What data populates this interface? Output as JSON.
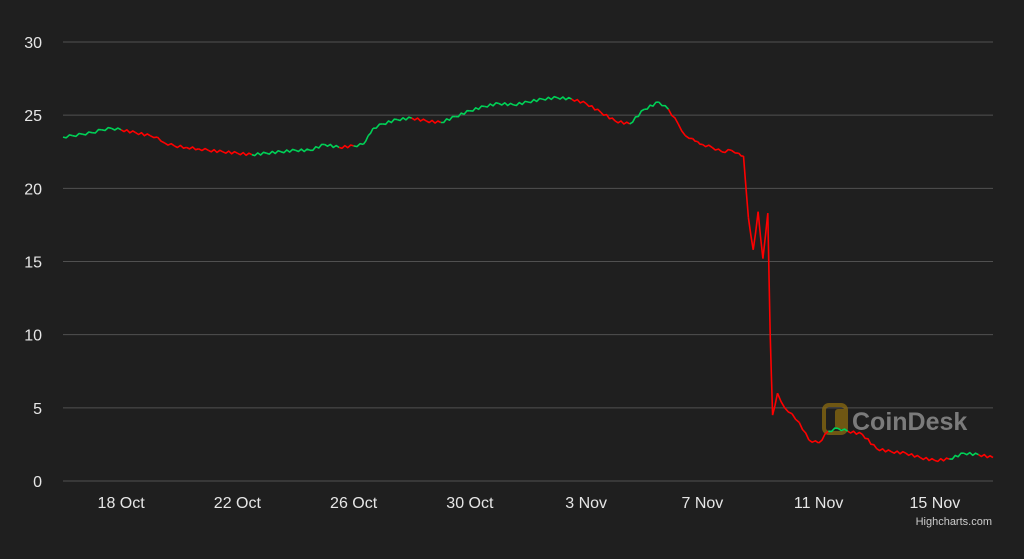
{
  "chart_data": {
    "type": "line",
    "title": "",
    "xlabel": "",
    "ylabel": "",
    "x_range": [
      "2022-10-16",
      "2022-11-17"
    ],
    "ylim": [
      0,
      30
    ],
    "y_ticks": [
      {
        "value": 0,
        "label": "0"
      },
      {
        "value": 5,
        "label": "5"
      },
      {
        "value": 10,
        "label": "10"
      },
      {
        "value": 15,
        "label": "15"
      },
      {
        "value": 20,
        "label": "20"
      },
      {
        "value": 25,
        "label": "25"
      },
      {
        "value": 30,
        "label": "30"
      }
    ],
    "x_ticks": [
      {
        "value": "2022-10-18",
        "label": "18 Oct"
      },
      {
        "value": "2022-10-22",
        "label": "22 Oct"
      },
      {
        "value": "2022-10-26",
        "label": "26 Oct"
      },
      {
        "value": "2022-10-30",
        "label": "30 Oct"
      },
      {
        "value": "2022-11-03",
        "label": "3 Nov"
      },
      {
        "value": "2022-11-07",
        "label": "7 Nov"
      },
      {
        "value": "2022-11-11",
        "label": "11 Nov"
      },
      {
        "value": "2022-11-15",
        "label": "15 Nov"
      }
    ],
    "grid": true,
    "legend": "none",
    "colors": {
      "up": "#00d157",
      "down": "#ff0000",
      "grid": "#505050",
      "background": "#1f1f1f"
    },
    "series": [
      {
        "points": [
          [
            "2022-10-16T00:00",
            23.5
          ],
          [
            "2022-10-16T08:00",
            23.6
          ],
          [
            "2022-10-16T16:00",
            23.7
          ],
          [
            "2022-10-17T00:00",
            23.8
          ],
          [
            "2022-10-17T08:00",
            24.0
          ],
          [
            "2022-10-17T16:00",
            24.1
          ],
          [
            "2022-10-18T00:00",
            24.0
          ],
          [
            "2022-10-18T12:00",
            23.8
          ],
          [
            "2022-10-19T00:00",
            23.6
          ],
          [
            "2022-10-19T06:00",
            23.5
          ],
          [
            "2022-10-19T12:00",
            23.1
          ],
          [
            "2022-10-19T20:00",
            22.9
          ],
          [
            "2022-10-20T06:00",
            22.8
          ],
          [
            "2022-10-20T16:00",
            22.7
          ],
          [
            "2022-10-21T00:00",
            22.6
          ],
          [
            "2022-10-21T12:00",
            22.5
          ],
          [
            "2022-10-22T00:00",
            22.4
          ],
          [
            "2022-10-22T12:00",
            22.3
          ],
          [
            "2022-10-23T00:00",
            22.4
          ],
          [
            "2022-10-23T12:00",
            22.5
          ],
          [
            "2022-10-24T00:00",
            22.6
          ],
          [
            "2022-10-24T12:00",
            22.6
          ],
          [
            "2022-10-25T00:00",
            23.0
          ],
          [
            "2022-10-25T12:00",
            22.8
          ],
          [
            "2022-10-26T00:00",
            22.9
          ],
          [
            "2022-10-26T08:00",
            23.0
          ],
          [
            "2022-10-26T12:00",
            23.6
          ],
          [
            "2022-10-26T16:00",
            24.1
          ],
          [
            "2022-10-27T00:00",
            24.4
          ],
          [
            "2022-10-27T12:00",
            24.7
          ],
          [
            "2022-10-28T00:00",
            24.8
          ],
          [
            "2022-10-28T12:00",
            24.6
          ],
          [
            "2022-10-29T00:00",
            24.5
          ],
          [
            "2022-10-29T12:00",
            24.9
          ],
          [
            "2022-10-30T00:00",
            25.3
          ],
          [
            "2022-10-30T12:00",
            25.6
          ],
          [
            "2022-10-31T00:00",
            25.8
          ],
          [
            "2022-10-31T12:00",
            25.7
          ],
          [
            "2022-11-01T00:00",
            25.9
          ],
          [
            "2022-11-01T12:00",
            26.1
          ],
          [
            "2022-11-02T00:00",
            26.2
          ],
          [
            "2022-11-02T12:00",
            26.1
          ],
          [
            "2022-11-03T00:00",
            25.8
          ],
          [
            "2022-11-03T12:00",
            25.2
          ],
          [
            "2022-11-04T00:00",
            24.6
          ],
          [
            "2022-11-04T12:00",
            24.4
          ],
          [
            "2022-11-05T00:00",
            25.4
          ],
          [
            "2022-11-05T12:00",
            25.9
          ],
          [
            "2022-11-05T20:00",
            25.4
          ],
          [
            "2022-11-06T04:00",
            24.4
          ],
          [
            "2022-11-06T10:00",
            23.6
          ],
          [
            "2022-11-06T16:00",
            23.4
          ],
          [
            "2022-11-06T20:00",
            23.2
          ],
          [
            "2022-11-07T00:00",
            23.0
          ],
          [
            "2022-11-07T08:00",
            22.8
          ],
          [
            "2022-11-07T16:00",
            22.5
          ],
          [
            "2022-11-08T00:00",
            22.6
          ],
          [
            "2022-11-08T06:00",
            22.4
          ],
          [
            "2022-11-08T10:00",
            22.2
          ],
          [
            "2022-11-08T14:00",
            18.0
          ],
          [
            "2022-11-08T18:00",
            15.8
          ],
          [
            "2022-11-08T22:00",
            18.4
          ],
          [
            "2022-11-09T02:00",
            15.2
          ],
          [
            "2022-11-09T06:00",
            18.3
          ],
          [
            "2022-11-09T08:00",
            10.0
          ],
          [
            "2022-11-09T10:00",
            4.5
          ],
          [
            "2022-11-09T14:00",
            6.0
          ],
          [
            "2022-11-09T20:00",
            5.0
          ],
          [
            "2022-11-10T02:00",
            4.6
          ],
          [
            "2022-11-10T08:00",
            4.0
          ],
          [
            "2022-11-10T16:00",
            2.8
          ],
          [
            "2022-11-11T00:00",
            2.6
          ],
          [
            "2022-11-11T08:00",
            3.4
          ],
          [
            "2022-11-11T16:00",
            3.6
          ],
          [
            "2022-11-12T00:00",
            3.4
          ],
          [
            "2022-11-12T12:00",
            3.2
          ],
          [
            "2022-11-13T00:00",
            2.2
          ],
          [
            "2022-11-13T12:00",
            2.0
          ],
          [
            "2022-11-14T00:00",
            1.9
          ],
          [
            "2022-11-14T12:00",
            1.6
          ],
          [
            "2022-11-15T00:00",
            1.4
          ],
          [
            "2022-11-15T12:00",
            1.5
          ],
          [
            "2022-11-16T00:00",
            1.9
          ],
          [
            "2022-11-16T12:00",
            1.8
          ],
          [
            "2022-11-17T00:00",
            1.6
          ]
        ]
      }
    ]
  },
  "watermark": {
    "text": "CoinDesk",
    "icon": "coindesk-logo-icon"
  },
  "credit": {
    "text": "Highcharts.com"
  }
}
